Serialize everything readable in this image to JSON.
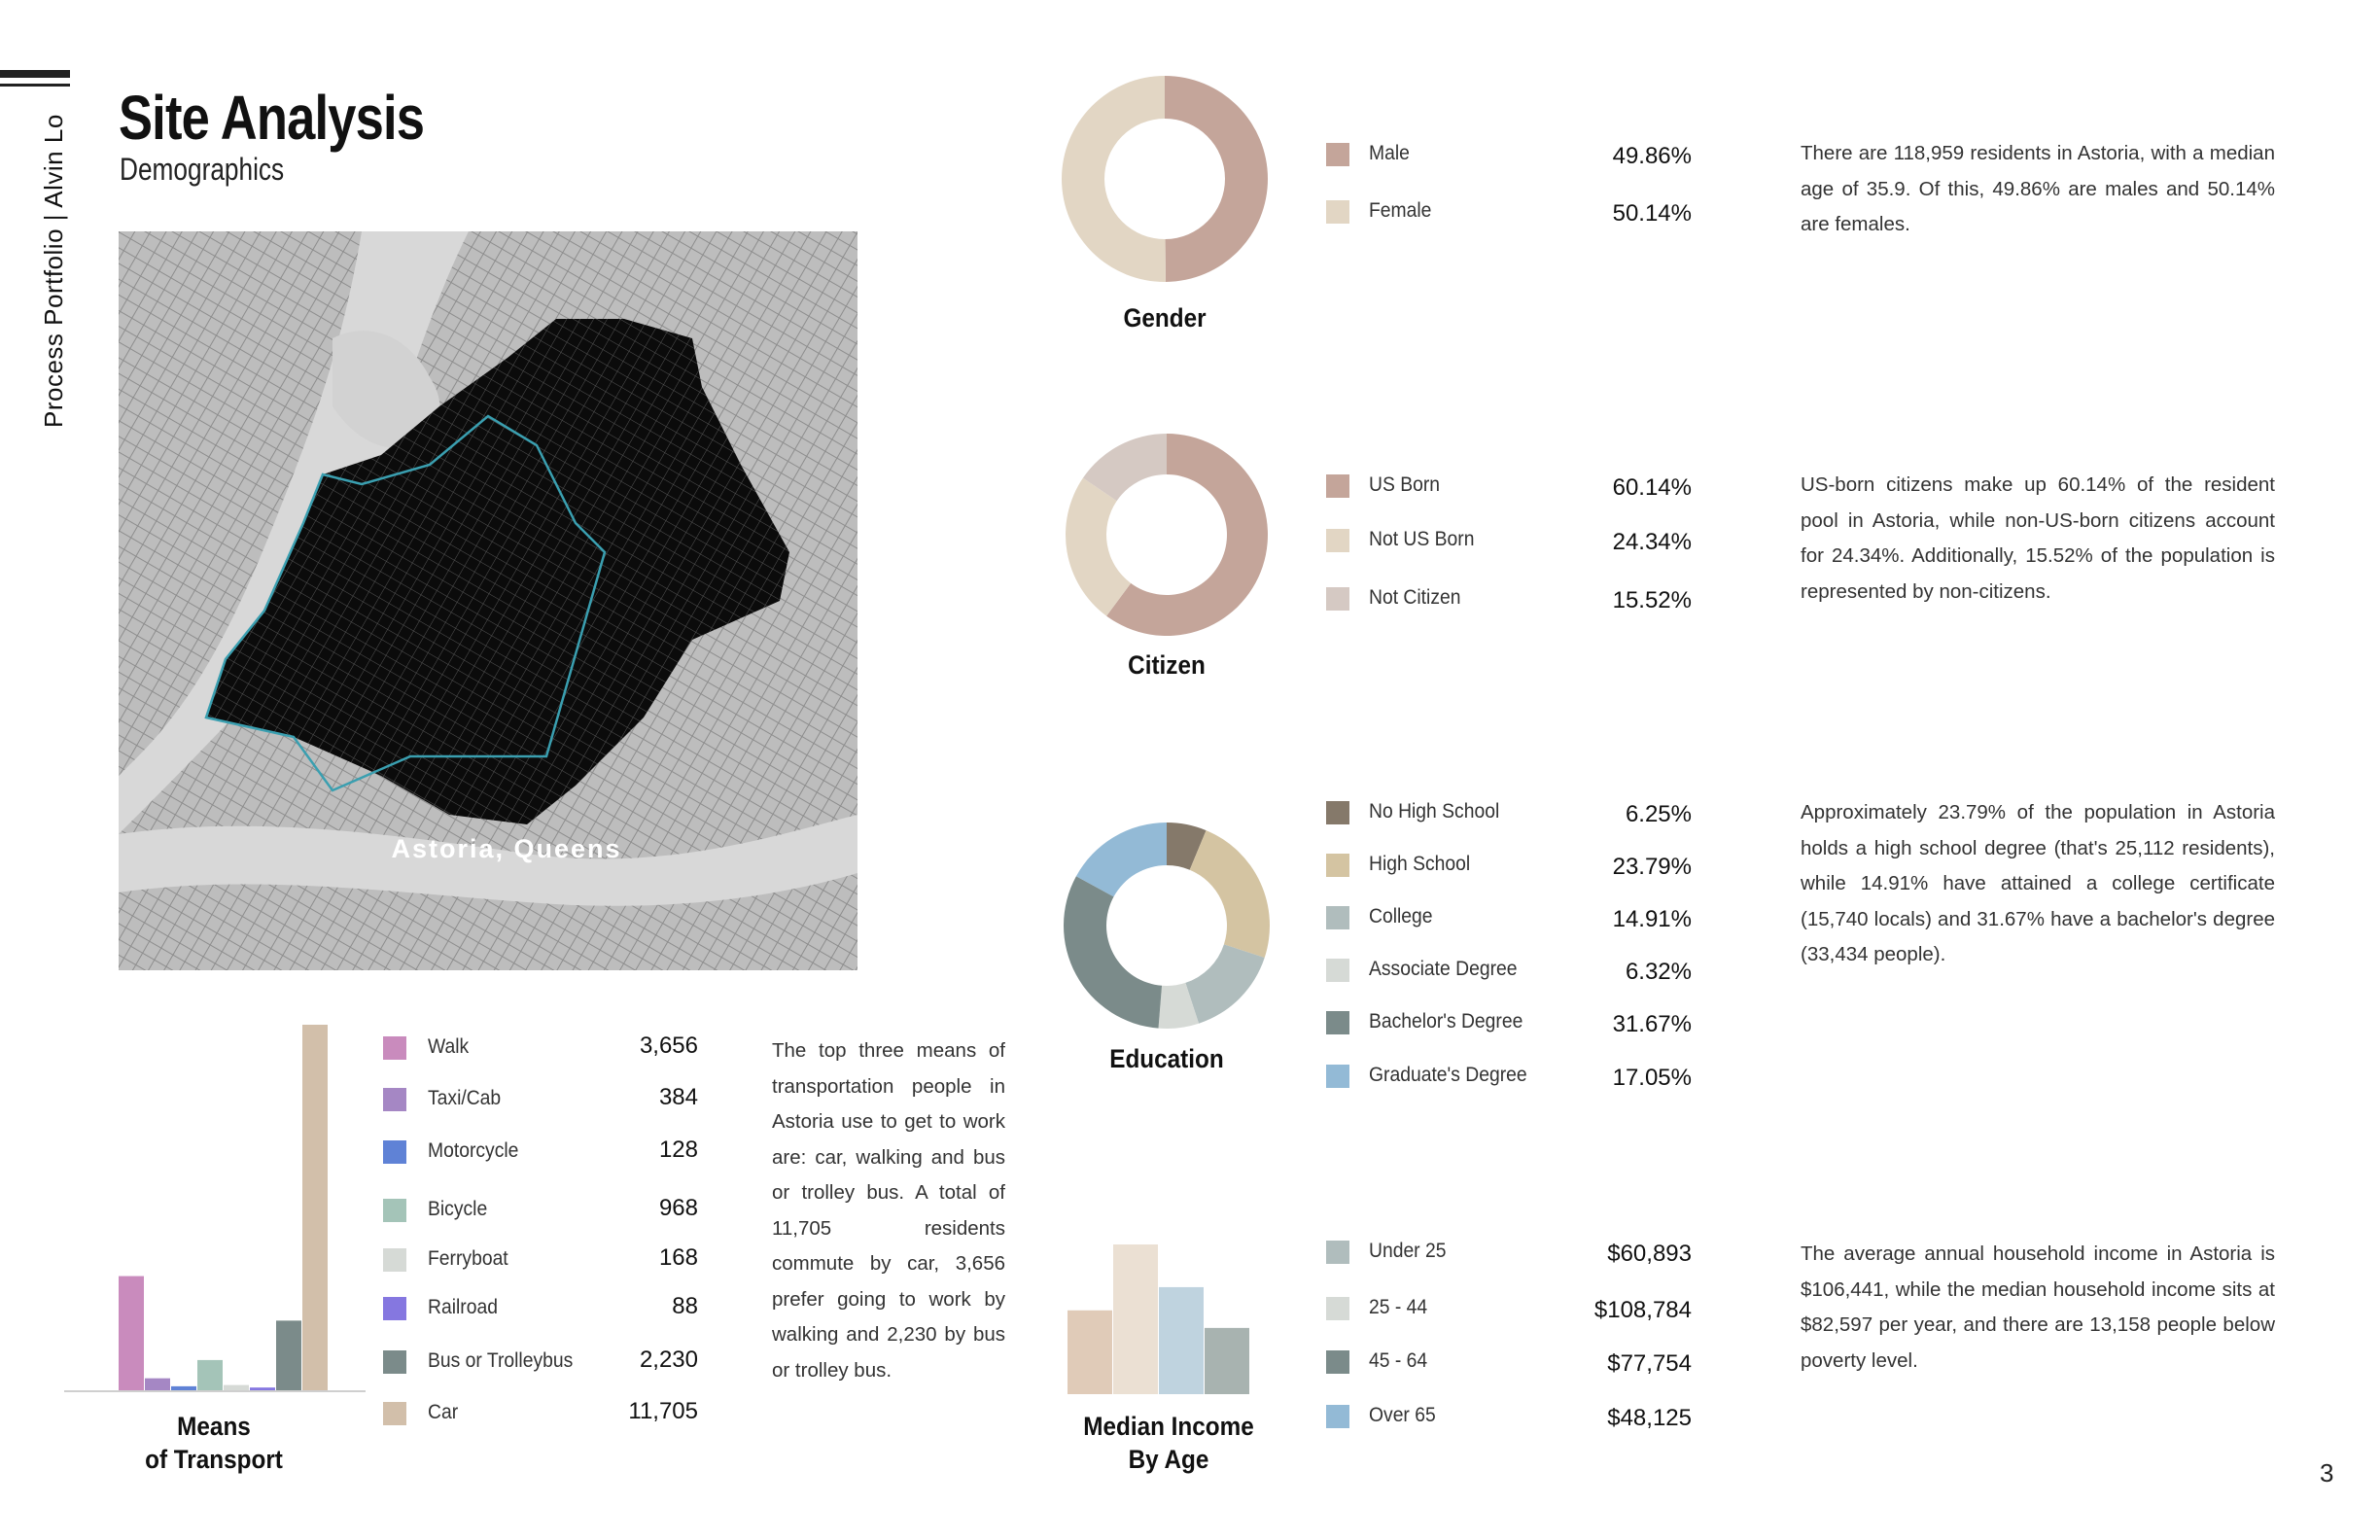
{
  "sidebar": {
    "text": "Process Portfolio  |  Alvin Lo"
  },
  "header": {
    "title": "Site Analysis",
    "subtitle": "Demographics"
  },
  "map": {
    "label": "Astoria, Queens",
    "boundary_color": "#3a9fb0",
    "fill_color": "#0b0b0b",
    "base_color": "#bdbdbd"
  },
  "gender": {
    "title": "Gender",
    "items": [
      {
        "label": "Male",
        "value": "49.86%",
        "num": 49.86,
        "color": "#c4a59a"
      },
      {
        "label": "Female",
        "value": "50.14%",
        "num": 50.14,
        "color": "#e2d6c4"
      }
    ],
    "description": "There are 118,959 residents in Astoria, with a median age of 35.9. Of this, 49.86% are males and 50.14% are females."
  },
  "citizen": {
    "title": "Citizen",
    "items": [
      {
        "label": "US Born",
        "value": "60.14%",
        "num": 60.14,
        "color": "#c4a59a"
      },
      {
        "label": "Not US Born",
        "value": "24.34%",
        "num": 24.34,
        "color": "#e2d6c4"
      },
      {
        "label": "Not Citizen",
        "value": "15.52%",
        "num": 15.52,
        "color": "#d5c9c3"
      }
    ],
    "description": "US-born citizens make up 60.14% of the resident pool in Astoria, while non-US-born citizens account for 24.34%. Additionally, 15.52% of the population is represented by non-citizens."
  },
  "education": {
    "title": "Education",
    "items": [
      {
        "label": "No High School",
        "value": "6.25%",
        "num": 6.25,
        "color": "#85796a"
      },
      {
        "label": "High School",
        "value": "23.79%",
        "num": 23.79,
        "color": "#d4c4a2"
      },
      {
        "label": "College",
        "value": "14.91%",
        "num": 14.91,
        "color": "#b0bdbd"
      },
      {
        "label": "Associate Degree",
        "value": "6.32%",
        "num": 6.32,
        "color": "#d6dad6"
      },
      {
        "label": "Bachelor's Degree",
        "value": "31.67%",
        "num": 31.67,
        "color": "#7b8b8a"
      },
      {
        "label": "Graduate's Degree",
        "value": "17.05%",
        "num": 17.05,
        "color": "#93bad6"
      }
    ],
    "description": "Approximately 23.79% of the population in Astoria holds a high school degree (that's 25,112 residents), while 14.91% have attained a college certificate (15,740 locals) and 31.67% have a bachelor's degree (33,434 people)."
  },
  "income": {
    "title_line1": "Median Income",
    "title_line2": "By Age",
    "items": [
      {
        "label": "Under 25",
        "value": "$60,893",
        "num": 60893,
        "color": "#b0bdbd"
      },
      {
        "label": "25 - 44",
        "value": "$108,784",
        "num": 108784,
        "color": "#d6dad6"
      },
      {
        "label": "45 - 64",
        "value": "$77,754",
        "num": 77754,
        "color": "#7b8b8a"
      },
      {
        "label": "Over 65",
        "value": "$48,125",
        "num": 48125,
        "color": "#93bad6"
      }
    ],
    "bar_colors": [
      "#e0cbb8",
      "#ebe0d3",
      "#bfd3df",
      "#a8b3b0"
    ],
    "description": "The average annual household income in Astoria is $106,441, while the median household income sits at $82,597 per year, and there are 13,158 people below poverty level."
  },
  "transport": {
    "title_line1": "Means",
    "title_line2": "of Transport",
    "items": [
      {
        "label": "Walk",
        "value": "3,656",
        "num": 3656,
        "color": "#c98bbd"
      },
      {
        "label": "Taxi/Cab",
        "value": "384",
        "num": 384,
        "color": "#a587c4"
      },
      {
        "label": "Motorcycle",
        "value": "128",
        "num": 128,
        "color": "#5f82d6"
      },
      {
        "label": "Bicycle",
        "value": "968",
        "num": 968,
        "color": "#a4c4b8"
      },
      {
        "label": "Ferryboat",
        "value": "168",
        "num": 168,
        "color": "#d6dad6"
      },
      {
        "label": "Railroad",
        "value": "88",
        "num": 88,
        "color": "#8577e0"
      },
      {
        "label": "Bus or Trolleybus",
        "value": "2,230",
        "num": 2230,
        "color": "#7b8b8a"
      },
      {
        "label": "Car",
        "value": "11,705",
        "num": 11705,
        "color": "#d2bfaa"
      }
    ],
    "description": "The top three means of transportation people in Astoria use to get to work are: car, walking and bus or trolley bus. A total of 11,705 residents commute by car, 3,656 prefer going to work by walking and 2,230 by bus or trolley bus."
  },
  "chart_data": [
    {
      "type": "pie",
      "title": "Gender",
      "categories": [
        "Male",
        "Female"
      ],
      "values": [
        49.86,
        50.14
      ]
    },
    {
      "type": "pie",
      "title": "Citizen",
      "categories": [
        "US Born",
        "Not US Born",
        "Not Citizen"
      ],
      "values": [
        60.14,
        24.34,
        15.52
      ]
    },
    {
      "type": "pie",
      "title": "Education",
      "categories": [
        "No High School",
        "High School",
        "College",
        "Associate Degree",
        "Bachelor's Degree",
        "Graduate's Degree"
      ],
      "values": [
        6.25,
        23.79,
        14.91,
        6.32,
        31.67,
        17.05
      ]
    },
    {
      "type": "bar",
      "title": "Median Income By Age",
      "categories": [
        "Under 25",
        "25 - 44",
        "45 - 64",
        "Over 65"
      ],
      "values": [
        60893,
        108784,
        77754,
        48125
      ]
    },
    {
      "type": "bar",
      "title": "Means of Transport",
      "categories": [
        "Walk",
        "Taxi/Cab",
        "Motorcycle",
        "Bicycle",
        "Ferryboat",
        "Railroad",
        "Bus or Trolleybus",
        "Car"
      ],
      "values": [
        3656,
        384,
        128,
        968,
        168,
        88,
        2230,
        11705
      ]
    }
  ],
  "page": {
    "number": "3"
  }
}
